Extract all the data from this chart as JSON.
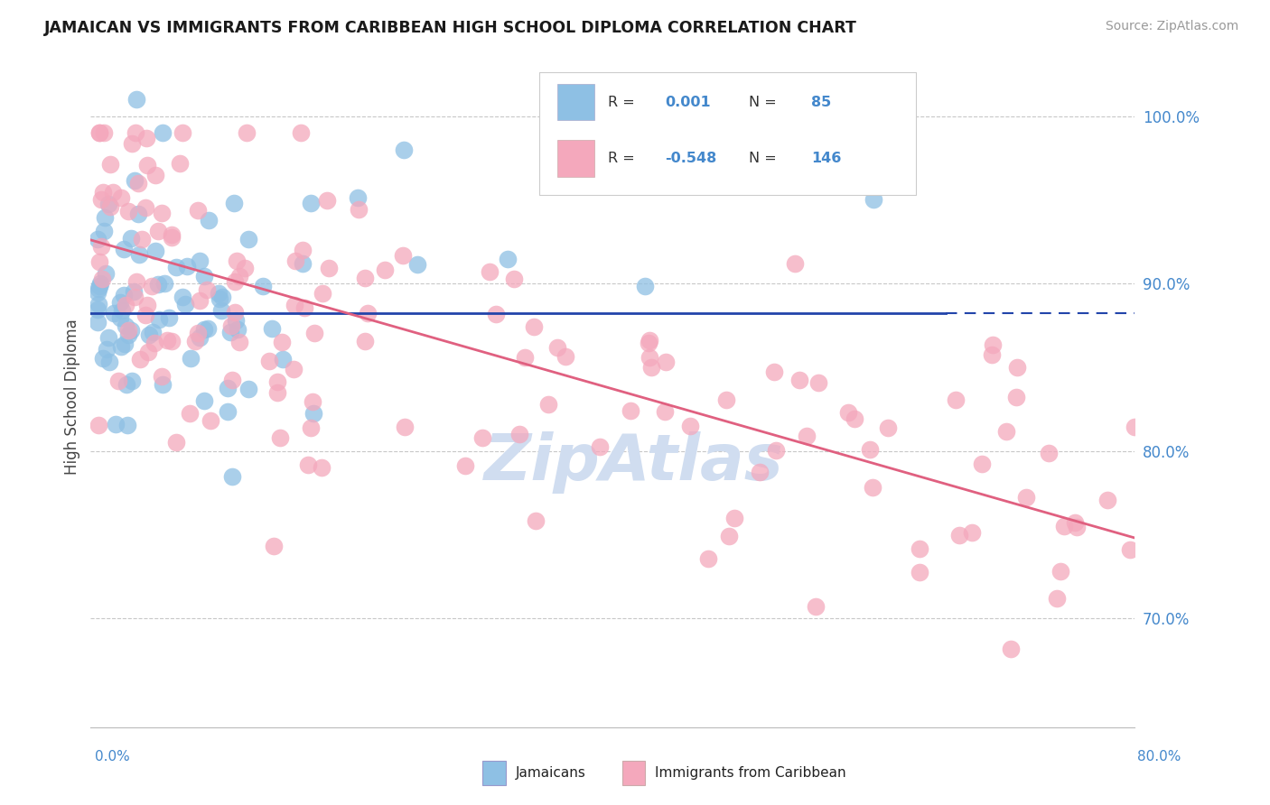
{
  "title": "JAMAICAN VS IMMIGRANTS FROM CARIBBEAN HIGH SCHOOL DIPLOMA CORRELATION CHART",
  "source": "Source: ZipAtlas.com",
  "ylabel": "High School Diploma",
  "ytick_labels": [
    "70.0%",
    "80.0%",
    "90.0%",
    "100.0%"
  ],
  "ytick_values": [
    0.7,
    0.8,
    0.9,
    1.0
  ],
  "xmin": 0.0,
  "xmax": 0.8,
  "ymin": 0.635,
  "ymax": 1.03,
  "legend_blue_R": "0.001",
  "legend_blue_N": "85",
  "legend_pink_R": "-0.548",
  "legend_pink_N": "146",
  "color_blue": "#8ec0e4",
  "color_pink": "#f4a8bc",
  "color_blue_line": "#2244aa",
  "color_pink_line": "#e06080",
  "color_blue_text": "#4488cc",
  "watermark_text": "ZipAtlas",
  "watermark_color": "#d0ddf0",
  "blue_line_y": 0.882,
  "blue_line_x_solid_end": 0.655,
  "pink_line_x0": 0.0,
  "pink_line_y0": 0.926,
  "pink_line_x1": 0.8,
  "pink_line_y1": 0.748
}
